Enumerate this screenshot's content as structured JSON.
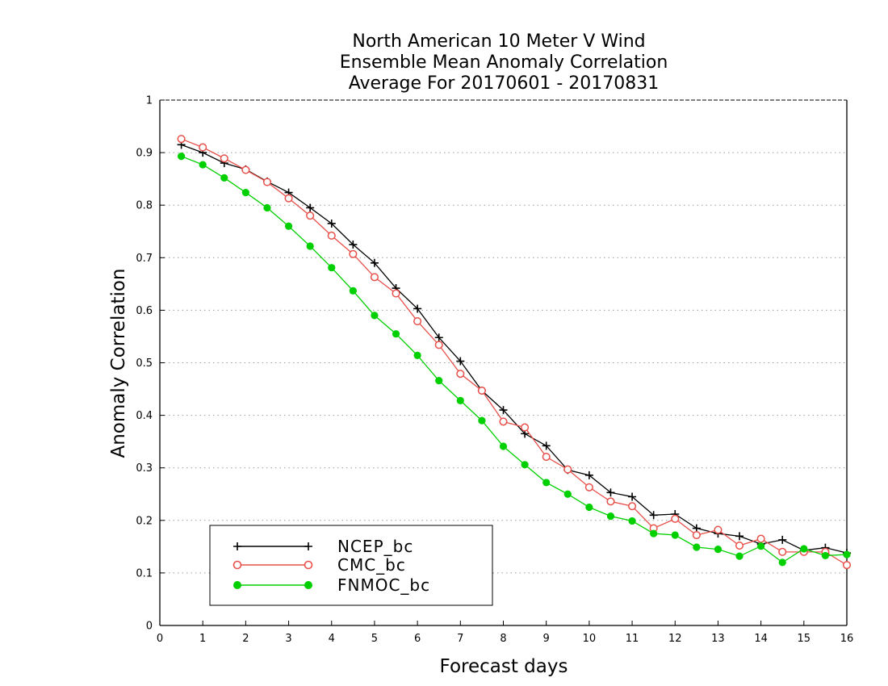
{
  "chart_data": {
    "type": "line",
    "title_lines": [
      "North American 10 Meter V Wind",
      "Ensemble Mean Anomaly Correlation",
      "Average For 20170601 - 20170831"
    ],
    "xlabel": "Forecast days",
    "ylabel": "Anomaly Correlation",
    "xlim": [
      0,
      16
    ],
    "ylim": [
      0,
      1
    ],
    "x_ticks": [
      "0",
      "1",
      "2",
      "3",
      "4",
      "5",
      "6",
      "7",
      "8",
      "9",
      "10",
      "11",
      "12",
      "13",
      "14",
      "15",
      "16"
    ],
    "y_ticks": [
      "0",
      "0.1",
      "0.2",
      "0.3",
      "0.4",
      "0.5",
      "0.6",
      "0.7",
      "0.8",
      "0.9",
      "1"
    ],
    "grid": "horizontal dotted",
    "legend_position": "bottom-left",
    "x": [
      0.5,
      1,
      1.5,
      2,
      2.5,
      3,
      3.5,
      4,
      4.5,
      5,
      5.5,
      6,
      6.5,
      7,
      7.5,
      8,
      8.5,
      9,
      9.5,
      10,
      10.5,
      11,
      11.5,
      12,
      12.5,
      13,
      13.5,
      14,
      14.5,
      15,
      15.5,
      16
    ],
    "series": [
      {
        "name": "NCEP_bc",
        "color": "#000000",
        "marker": "plus",
        "values": [
          0.915,
          0.9,
          0.88,
          0.868,
          0.845,
          0.824,
          0.795,
          0.765,
          0.725,
          0.69,
          0.642,
          0.603,
          0.548,
          0.503,
          0.447,
          0.41,
          0.365,
          0.342,
          0.296,
          0.286,
          0.253,
          0.245,
          0.21,
          0.212,
          0.185,
          0.175,
          0.17,
          0.155,
          0.163,
          0.143,
          0.148,
          0.138
        ]
      },
      {
        "name": "CMC_bc",
        "color": "#e8504a",
        "marker": "open-circle",
        "values": [
          0.926,
          0.91,
          0.889,
          0.867,
          0.844,
          0.813,
          0.78,
          0.742,
          0.707,
          0.663,
          0.632,
          0.579,
          0.534,
          0.479,
          0.447,
          0.388,
          0.377,
          0.321,
          0.297,
          0.263,
          0.236,
          0.227,
          0.185,
          0.203,
          0.172,
          0.182,
          0.152,
          0.165,
          0.14,
          0.14,
          0.14,
          0.115
        ]
      },
      {
        "name": "FNMOC_bc",
        "color": "#00d000",
        "marker": "filled-circle",
        "values": [
          0.893,
          0.877,
          0.852,
          0.824,
          0.795,
          0.76,
          0.722,
          0.681,
          0.637,
          0.59,
          0.555,
          0.514,
          0.466,
          0.428,
          0.39,
          0.341,
          0.306,
          0.272,
          0.25,
          0.225,
          0.208,
          0.199,
          0.175,
          0.172,
          0.149,
          0.145,
          0.132,
          0.151,
          0.12,
          0.146,
          0.133,
          0.135
        ]
      }
    ]
  }
}
